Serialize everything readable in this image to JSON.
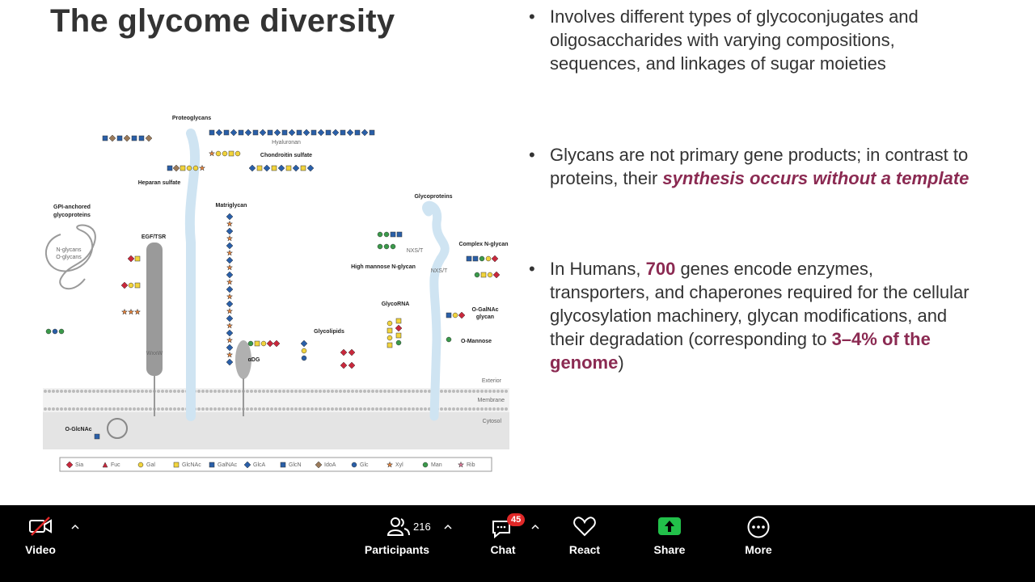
{
  "slide": {
    "title": "The glycome diversity",
    "bullets": [
      {
        "segments": [
          {
            "text": "Involves different types of glycoconjugates and oligosaccharides with varying compositions, sequences, and linkages of sugar moieties"
          }
        ]
      },
      {
        "segments": [
          {
            "text": "Glycans are not primary gene products; in contrast to proteins, their "
          },
          {
            "text": "synthesis occurs without a template",
            "style": "bold-italic"
          }
        ]
      },
      {
        "segments": [
          {
            "text": "In Humans, "
          },
          {
            "text": "700",
            "style": "bold"
          },
          {
            "text": " genes encode enzymes, transporters, and chaperones required for the cellular glycosylation machinery, glycan modifications, and their degradation (corresponding to "
          },
          {
            "text": "3–4% of the genome",
            "style": "bold"
          },
          {
            "text": ")"
          }
        ]
      }
    ],
    "accent_color": "#8b2a52"
  },
  "figure": {
    "labels": [
      "Proteoglycans",
      "Hyaluronan",
      "Chondroitin sulfate",
      "Heparan sulfate",
      "GPI-anchored",
      "glycoproteins",
      "N-glycans",
      "O-glycans",
      "EGF/TSR",
      "Matriglycan",
      "Glycolipids",
      "GlycoRNA",
      "Glycoproteins",
      "Complex N-glycan",
      "High mannose N-glycan",
      "O-GalNAc",
      "glycan",
      "O-Mannose",
      "αDG",
      "O-GlcNAc",
      "Exterior",
      "Membrane",
      "Cytosol",
      "NXS/T",
      "NXS/T",
      "WxxW"
    ],
    "legend": [
      {
        "name": "Sia",
        "color": "#c8283c",
        "shape": "diamond"
      },
      {
        "name": "Fuc",
        "color": "#c8283c",
        "shape": "triangle"
      },
      {
        "name": "Gal",
        "color": "#f2d43c",
        "shape": "circle"
      },
      {
        "name": "GlcNAc",
        "color": "#f2d43c",
        "shape": "square"
      },
      {
        "name": "GalNAc",
        "color": "#2a5fa8",
        "shape": "square"
      },
      {
        "name": "GlcA",
        "color": "#2a5fa8",
        "shape": "diamond"
      },
      {
        "name": "GlcN",
        "color": "#2a5fa8",
        "shape": "square"
      },
      {
        "name": "IdoA",
        "color": "#9a7a5a",
        "shape": "diamond"
      },
      {
        "name": "Glc",
        "color": "#2a5fa8",
        "shape": "circle"
      },
      {
        "name": "Xyl",
        "color": "#e8843c",
        "shape": "star"
      },
      {
        "name": "Man",
        "color": "#3a9a4a",
        "shape": "circle"
      },
      {
        "name": "Rib",
        "color": "#e07a9a",
        "shape": "star"
      }
    ]
  },
  "toolbar": {
    "items": [
      "Video",
      "Participants",
      "Chat",
      "React",
      "Share",
      "More"
    ],
    "participants_count": "216",
    "chat_badge": "45"
  }
}
